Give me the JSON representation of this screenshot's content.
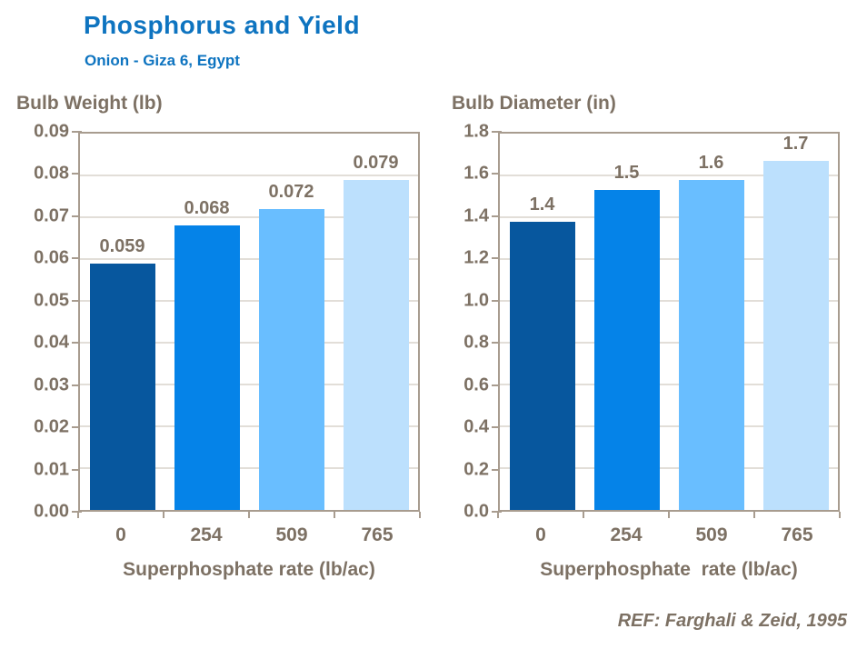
{
  "header": {
    "title": "Phosphorus and Yield",
    "subtitle": "Onion - Giza 6, Egypt"
  },
  "footer": {
    "reference": "REF: Farghali & Zeid, 1995"
  },
  "colors": {
    "title": "#0E74C0",
    "axis_text": "#7D7164",
    "axis_line": "#A89C8F",
    "gridline": "#C6BEB2",
    "bar_palette": [
      "#07579E",
      "#0583E8",
      "#69BEFF",
      "#BCE0FD"
    ]
  },
  "chart_data": [
    {
      "type": "bar",
      "title": "Bulb Weight (lb)",
      "xlabel": "Superphosphate rate (lb/ac)",
      "ylabel": "",
      "categories": [
        "0",
        "254",
        "509",
        "765"
      ],
      "values": [
        0.059,
        0.068,
        0.072,
        0.079
      ],
      "bar_labels": [
        "0.059",
        "0.068",
        "0.072",
        "0.079"
      ],
      "ylim": [
        0,
        0.09
      ],
      "yticks": [
        "0.09",
        "0.08",
        "0.07",
        "0.06",
        "0.05",
        "0.04",
        "0.03",
        "0.02",
        "0.01",
        "0.00"
      ],
      "grid": true,
      "legend": "none"
    },
    {
      "type": "bar",
      "title": "Bulb Diameter (in)",
      "xlabel": "Superphosphate  rate (lb/ac)",
      "ylabel": "",
      "categories": [
        "0",
        "254",
        "509",
        "765"
      ],
      "values": [
        1.4,
        1.5,
        1.6,
        1.7
      ],
      "bar_labels": [
        "1.4",
        "1.5",
        "1.6",
        "1.7"
      ],
      "bar_display_values": [
        1.38,
        1.53,
        1.58,
        1.67
      ],
      "ylim": [
        0,
        1.8
      ],
      "yticks": [
        "1.8",
        "1.6",
        "1.4",
        "1.2",
        "1.0",
        "0.8",
        "0.6",
        "0.4",
        "0.2",
        "0.0"
      ],
      "grid": true,
      "legend": "none"
    }
  ]
}
